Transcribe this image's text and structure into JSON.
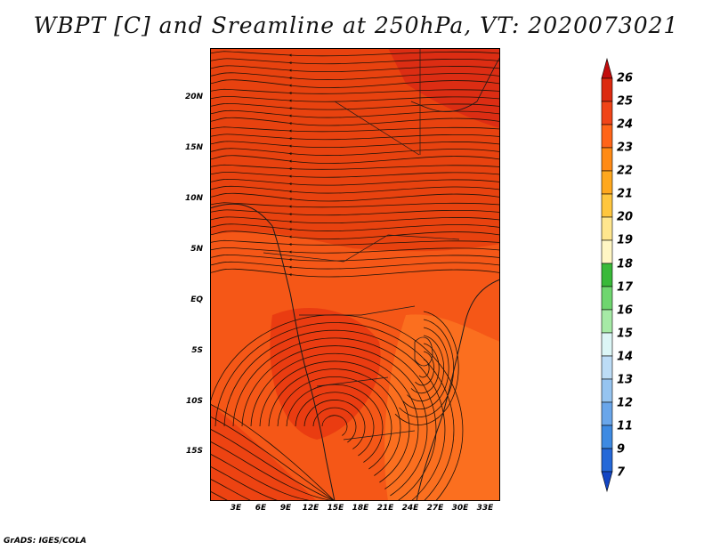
{
  "title": "WBPT [C] and Sreamline at 250hPa, VT: 2020073021",
  "credit": "GrADS: IGES/COLA",
  "map": {
    "lat_ticks": [
      "20N",
      "15N",
      "10N",
      "5N",
      "EQ",
      "5S",
      "10S",
      "15S"
    ],
    "lon_ticks": [
      "3E",
      "6E",
      "9E",
      "12E",
      "15E",
      "18E",
      "21E",
      "24E",
      "27E",
      "30E",
      "33E"
    ],
    "background_colors": {
      "24_25": "#e93a11",
      "23_24": "#ff6a1f",
      "22_23": "#ff7f24",
      "25_26": "#d82814",
      "coast_line": "#1a1a1a",
      "streamline": "#1e1208"
    }
  },
  "colorbar": {
    "labels": [
      "26",
      "25",
      "24",
      "23",
      "22",
      "21",
      "20",
      "19",
      "18",
      "17",
      "16",
      "15",
      "14",
      "13",
      "12",
      "11",
      "9",
      "7"
    ],
    "colors": [
      "#c20d0d",
      "#dc2a10",
      "#f04418",
      "#ff6418",
      "#ff8a14",
      "#ffa81e",
      "#ffc63e",
      "#ffe68e",
      "#fff6c4",
      "#39b939",
      "#6fd66f",
      "#a6eaa6",
      "#dcf6f6",
      "#bcdcf6",
      "#96c4f0",
      "#6aa6ea",
      "#3e8ae2",
      "#2468d8",
      "#1446c4"
    ]
  }
}
